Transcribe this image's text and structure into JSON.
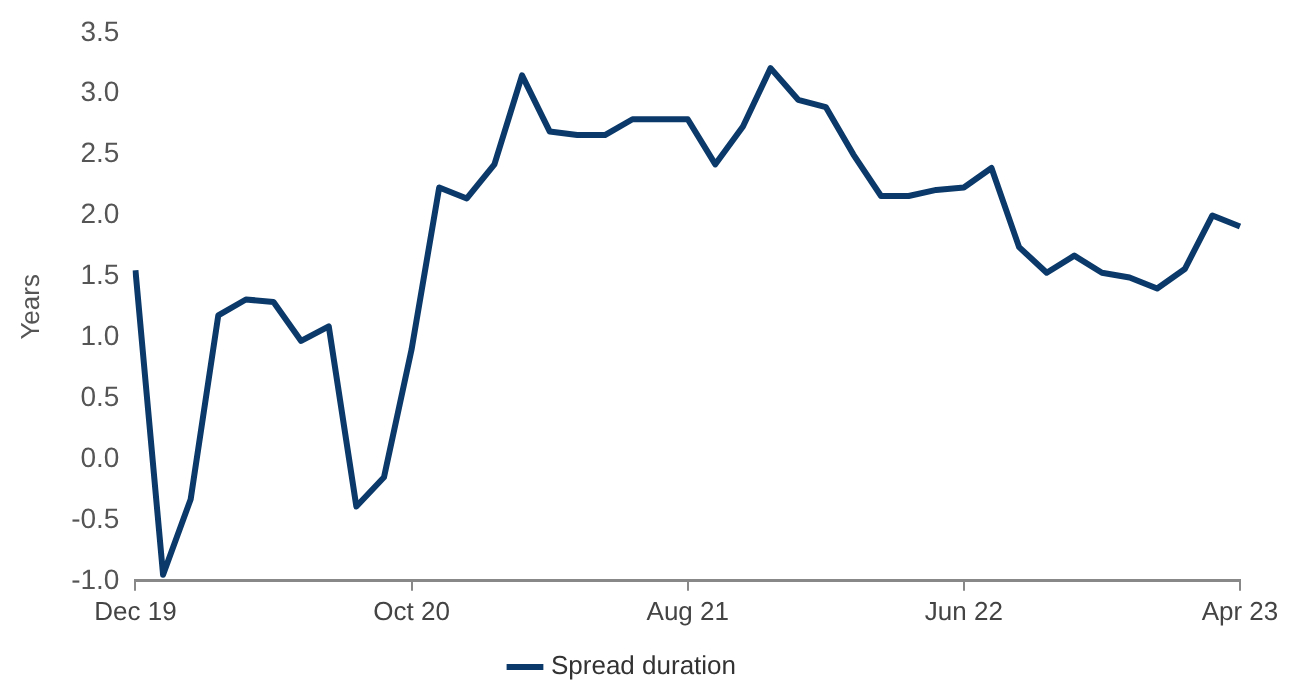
{
  "chart_data": {
    "type": "line",
    "ylabel": "Years",
    "categories": [
      "Dec 19",
      null,
      null,
      null,
      null,
      null,
      null,
      null,
      null,
      null,
      "Oct 20",
      null,
      null,
      null,
      null,
      null,
      null,
      null,
      null,
      null,
      "Aug 21",
      null,
      null,
      null,
      null,
      null,
      null,
      null,
      null,
      null,
      "Jun 22",
      null,
      null,
      null,
      null,
      null,
      null,
      null,
      null,
      null,
      "Apr 23"
    ],
    "series": [
      {
        "name": "Spread duration",
        "color": "#0b3a6a",
        "values": [
          1.55,
          -0.95,
          -0.33,
          1.18,
          1.31,
          1.29,
          0.97,
          1.09,
          -0.39,
          -0.15,
          0.9,
          2.23,
          2.14,
          2.42,
          3.15,
          2.69,
          2.66,
          2.66,
          2.79,
          2.79,
          2.79,
          2.42,
          2.73,
          3.21,
          2.95,
          2.89,
          2.5,
          2.16,
          2.16,
          2.21,
          2.23,
          2.39,
          1.74,
          1.53,
          1.67,
          1.53,
          1.49,
          1.4,
          1.56,
          2.0,
          1.91
        ]
      }
    ],
    "ylim": [
      -1.0,
      3.5
    ],
    "yticks": [
      {
        "value": -1,
        "label": "-1.0"
      },
      {
        "value": -0.5,
        "label": "-0.5"
      },
      {
        "value": 0,
        "label": "0.0"
      },
      {
        "value": 0.5,
        "label": "0.5"
      },
      {
        "value": 1,
        "label": "1.0"
      },
      {
        "value": 1.5,
        "label": "1.5"
      },
      {
        "value": 2,
        "label": "2.0"
      },
      {
        "value": 2.5,
        "label": "2.5"
      },
      {
        "value": 3,
        "label": "3.0"
      },
      {
        "value": 3.5,
        "label": "3.5"
      }
    ],
    "grid": false,
    "legend": "bottom",
    "marker": "none",
    "line_style": "solid"
  }
}
